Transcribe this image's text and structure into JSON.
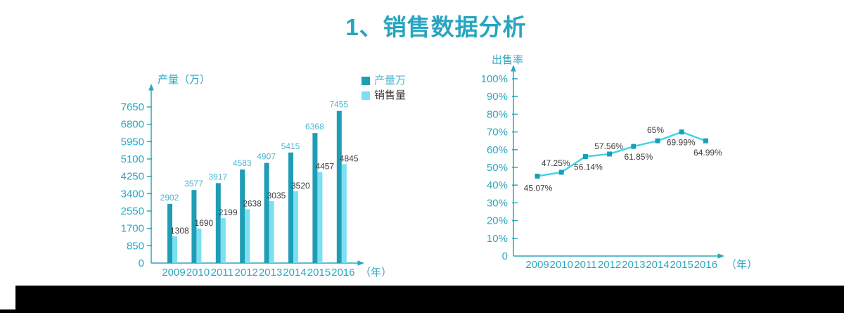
{
  "title": "1、销售数据分析",
  "colors": {
    "accent": "#2AA7C1",
    "title_text": "#27A5C1",
    "production_bar": "#1E9DB5",
    "sales_bar": "#7BE0F2",
    "production_label": "#4FB6CE",
    "dark_label": "#3D3D3D",
    "line": "#38D5E8",
    "marker": "#1B9FB8",
    "footer_bar": "#000000",
    "background": "#FFFFFF"
  },
  "chart_data": [
    {
      "type": "bar",
      "ylabel": "产量（万）",
      "x_unit_label": "（年）",
      "categories": [
        "2009",
        "2010",
        "2011",
        "2012",
        "2013",
        "2014",
        "2015",
        "2016"
      ],
      "series": [
        {
          "name": "产量万",
          "values": [
            2902,
            3577,
            3917,
            4583,
            4907,
            5415,
            6368,
            7455
          ]
        },
        {
          "name": "销售量",
          "values": [
            1308,
            1690,
            2199,
            2638,
            3035,
            3520,
            4457,
            4845
          ]
        }
      ],
      "y_ticks": [
        0,
        850,
        1700,
        2550,
        3400,
        4250,
        5100,
        5950,
        6800,
        7650
      ],
      "ylim": [
        0,
        7650
      ],
      "legend_position": "top-right",
      "grid": false
    },
    {
      "type": "line",
      "ylabel": "出售率",
      "x_unit_label": "（年）",
      "categories": [
        "2009",
        "2010",
        "2011",
        "2012",
        "2013",
        "2014",
        "2015",
        "2016"
      ],
      "series": [
        {
          "name": "出售率",
          "values": [
            45.07,
            47.25,
            56.14,
            57.56,
            61.85,
            65,
            69.99,
            64.99
          ]
        }
      ],
      "point_labels": [
        "45.07%",
        "47.25%",
        "56.14%",
        "57.56%",
        "61.85%",
        "65%",
        "69.99%",
        "64.99%"
      ],
      "y_tick_labels": [
        "0",
        "10%",
        "20%",
        "30%",
        "40%",
        "50%",
        "60%",
        "70%",
        "80%",
        "90%",
        "100%"
      ],
      "ylim": [
        0,
        100
      ],
      "grid": false
    }
  ]
}
